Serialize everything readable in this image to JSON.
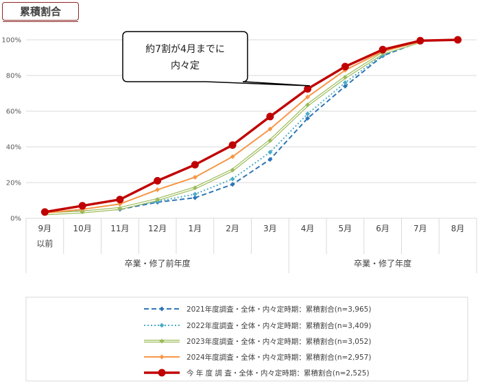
{
  "title": "累積割合",
  "callout": {
    "line1": "約7割が4月までに",
    "line2": "内々定"
  },
  "chart_data": {
    "type": "line",
    "categories": [
      "9月\n以前",
      "10月",
      "11月",
      "12月",
      "1月",
      "2月",
      "3月",
      "4月",
      "5月",
      "6月",
      "7月",
      "8月"
    ],
    "category_lines": [
      [
        "9月",
        "以前"
      ],
      [
        "10月"
      ],
      [
        "11月"
      ],
      [
        "12月"
      ],
      [
        "1月"
      ],
      [
        "2月"
      ],
      [
        "3月"
      ],
      [
        "4月"
      ],
      [
        "5月"
      ],
      [
        "6月"
      ],
      [
        "7月"
      ],
      [
        "8月"
      ]
    ],
    "groups": [
      {
        "label": "卒業・修了前年度",
        "start": 0,
        "end": 6
      },
      {
        "label": "卒業・修了年度",
        "start": 7,
        "end": 11
      }
    ],
    "ylim": [
      0,
      100
    ],
    "yticks": [
      0,
      20,
      40,
      60,
      80,
      100
    ],
    "ytick_labels": [
      "0%",
      "20%",
      "40%",
      "60%",
      "80%",
      "100%"
    ],
    "grid": true,
    "legend_position": "bottom",
    "series": [
      {
        "name": "2021年度調査・全体・内々定時期：累積割合(n=3,965)",
        "color": "#2E75B6",
        "style": "dashed",
        "marker": "diamond",
        "width": 2,
        "values": [
          3,
          4,
          5,
          9,
          11.5,
          19,
          33,
          56,
          74,
          91,
          99,
          null
        ]
      },
      {
        "name": "2022年度調査・全体・内々定時期：累積割合(n=3,409)",
        "color": "#4BACC6",
        "style": "dotted",
        "marker": "diamond",
        "width": 2,
        "values": [
          3,
          4,
          5.5,
          9.5,
          13.5,
          22,
          37,
          58.5,
          76,
          91.5,
          99,
          null
        ]
      },
      {
        "name": "2023年度調査・全体・内々定時期：累積割合(n=3,052)",
        "color": "#9BBB59",
        "style": "double",
        "marker": "diamond",
        "width": 1.5,
        "values": [
          2.5,
          3.5,
          5.5,
          10.5,
          17,
          27,
          43.5,
          63.5,
          79,
          92.5,
          99,
          null
        ]
      },
      {
        "name": "2024年度調査・全体・内々定時期：累積割合(n=2,957)",
        "color": "#F79646",
        "style": "solid",
        "marker": "diamond",
        "width": 2,
        "values": [
          3,
          5,
          8,
          16,
          23,
          34.5,
          50,
          68,
          83,
          93.5,
          99,
          null
        ]
      },
      {
        "name": "今 年 度 調 査・全体・内々定時期：累積割合(n=2,525)",
        "color": "#C00000",
        "style": "solid",
        "marker": "circle",
        "width": 3.5,
        "values": [
          3.5,
          7,
          10.5,
          21,
          30,
          41,
          57,
          72.5,
          85,
          94.5,
          99.5,
          100
        ]
      }
    ]
  }
}
